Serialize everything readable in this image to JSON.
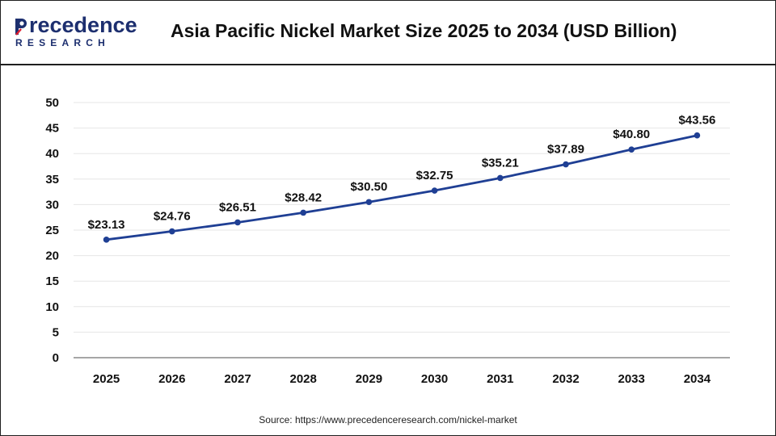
{
  "header": {
    "logo_main": "recedence",
    "logo_sub": "RESEARCH",
    "title": "Asia Pacific Nickel Market Size 2025 to 2034 (USD Billion)"
  },
  "footer": {
    "source": "Source: https://www.precedenceresearch.com/nickel-market"
  },
  "colors": {
    "line": "#1f3f94",
    "marker": "#1f3f94",
    "grid": "#e6e6e6",
    "axis": "#888888",
    "text": "#111111"
  },
  "chart_data": {
    "type": "line",
    "title": "Asia Pacific Nickel Market Size 2025 to 2034 (USD Billion)",
    "xlabel": "",
    "ylabel": "",
    "categories": [
      "2025",
      "2026",
      "2027",
      "2028",
      "2029",
      "2030",
      "2031",
      "2032",
      "2033",
      "2034"
    ],
    "series": [
      {
        "values": [
          23.13,
          24.76,
          26.51,
          28.42,
          30.5,
          32.75,
          35.21,
          37.89,
          40.8,
          43.56
        ],
        "labels": [
          "$23.13",
          "$24.76",
          "$26.51",
          "$28.42",
          "$30.50",
          "$32.75",
          "$35.21",
          "$37.89",
          "$40.80",
          "$43.56"
        ]
      }
    ],
    "ylim": [
      0,
      50
    ],
    "yticks": [
      0,
      5,
      10,
      15,
      20,
      25,
      30,
      35,
      40,
      45,
      50
    ],
    "grid": true,
    "legend": "none"
  }
}
